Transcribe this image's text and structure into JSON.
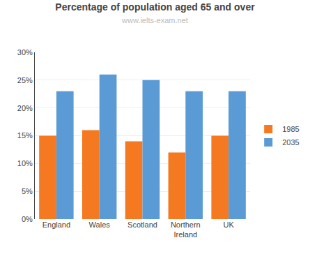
{
  "chart_data": {
    "type": "bar",
    "title": "Percentage of population aged 65 and over",
    "subtitle": "www.ielts-exam.net",
    "categories": [
      "England",
      "Wales",
      "Scotland",
      "Northern\nIreland",
      "UK"
    ],
    "series": [
      {
        "name": "1985",
        "color": "#F47920",
        "values": [
          15,
          16,
          14,
          12,
          15
        ]
      },
      {
        "name": "2035",
        "color": "#5B9BD5",
        "values": [
          23,
          26,
          25,
          23,
          23
        ]
      }
    ],
    "ylim": [
      0,
      30
    ],
    "yticks": [
      {
        "value": 0,
        "label": "0%"
      },
      {
        "value": 5,
        "label": "5%"
      },
      {
        "value": 10,
        "label": "10%"
      },
      {
        "value": 15,
        "label": "15%"
      },
      {
        "value": 20,
        "label": "20%"
      },
      {
        "value": 25,
        "label": "25%"
      },
      {
        "value": 30,
        "label": "30%"
      }
    ],
    "grid": true,
    "legend": "right"
  }
}
